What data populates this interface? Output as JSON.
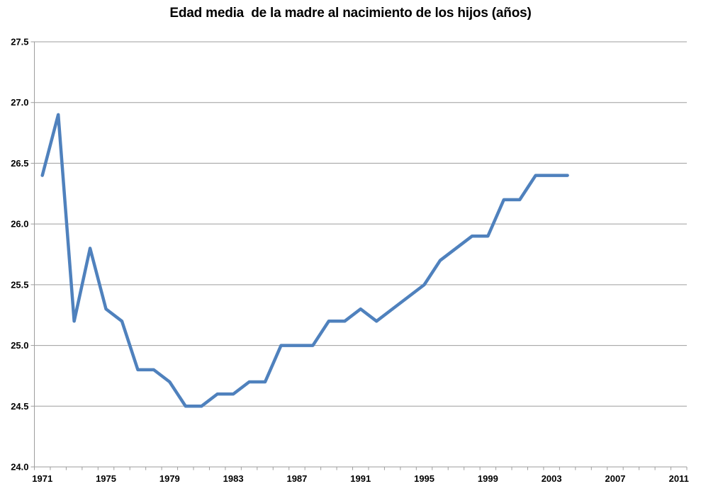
{
  "colors": {
    "background": "#ffffff",
    "line": "#4f81bd",
    "grid": "#9d9d9d",
    "axis": "#9d9d9d",
    "text": "#000000"
  },
  "chart_data": {
    "type": "line",
    "title": "Edad media  de la madre al nacimiento de los hijos (años)",
    "xlabel": "",
    "ylabel": "",
    "grid": true,
    "legend": false,
    "x_axis": {
      "start": 1971,
      "end": 2011,
      "tick_every": 1,
      "label_every": 4,
      "labels": [
        "1971",
        "1975",
        "1979",
        "1983",
        "1987",
        "1991",
        "1995",
        "1999",
        "2003",
        "2007",
        "2011"
      ]
    },
    "y_axis": {
      "min": 24.0,
      "max": 27.5,
      "step": 0.5,
      "labels": [
        "27.5",
        "27.0",
        "26.5",
        "26.0",
        "25.5",
        "25.0",
        "24.5",
        "24.0"
      ]
    },
    "series": {
      "years": [
        1971,
        1972,
        1973,
        1974,
        1975,
        1976,
        1977,
        1978,
        1979,
        1980,
        1981,
        1982,
        1983,
        1984,
        1985,
        1986,
        1987,
        1988,
        1989,
        1990,
        1991,
        1992,
        1993,
        1994,
        1995,
        1996,
        1997,
        1998,
        1999,
        2000,
        2001,
        2002,
        2003,
        2004
      ],
      "values": [
        26.4,
        26.9,
        25.2,
        25.8,
        25.3,
        25.2,
        24.8,
        24.8,
        24.7,
        24.5,
        24.5,
        24.6,
        24.6,
        24.7,
        24.7,
        25.0,
        25.0,
        25.0,
        25.2,
        25.2,
        25.3,
        25.2,
        25.3,
        25.4,
        25.5,
        25.7,
        25.8,
        25.9,
        25.9,
        26.2,
        26.2,
        26.4,
        26.4,
        26.4
      ]
    }
  }
}
